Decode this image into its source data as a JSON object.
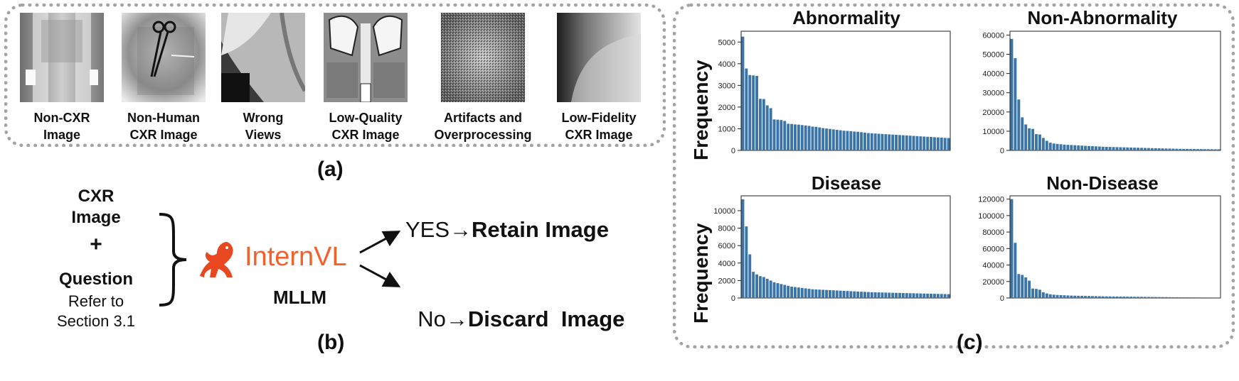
{
  "panel_a": {
    "label": "(a)",
    "items": [
      {
        "line1": "Non-CXR",
        "line2": "Image",
        "icon": "pelvis-xray-thumbnail"
      },
      {
        "line1": "Non-Human",
        "line2": "CXR Image",
        "icon": "forceps-xray-thumbnail"
      },
      {
        "line1": "Wrong",
        "line2": "Views",
        "icon": "lateral-view-thumbnail"
      },
      {
        "line1": "Low-Quality",
        "line2": "CXR Image",
        "icon": "low-quality-cxr-thumbnail"
      },
      {
        "line1": "Artifacts and",
        "line2": "Overprocessing",
        "icon": "noise-artifact-thumbnail"
      },
      {
        "line1": "Low-Fidelity",
        "line2": "CXR Image",
        "icon": "low-fidelity-cxr-thumbnail"
      }
    ]
  },
  "panel_b": {
    "label": "(b)",
    "input_line1": "CXR",
    "input_line2": "Image",
    "plus": "+",
    "question": "Question",
    "refer1": "Refer to",
    "refer2": "Section 3.1",
    "model_name": "InternVL",
    "model_sub": "MLLM",
    "yes_prefix": "YES",
    "yes_action": "Retain Image",
    "no_prefix": "No",
    "no_action": "Discard  Image",
    "colors": {
      "internvl": "#f0622d",
      "logo": "#e8471f"
    }
  },
  "panel_c": {
    "label": "(c)",
    "ylabel": "Frequency",
    "bar_color": "#3b75a7"
  },
  "chart_data": [
    {
      "type": "bar",
      "title": "Abnormality",
      "ylabel": "Frequency",
      "yticks": [
        0,
        1000,
        2000,
        3000,
        4000,
        5000
      ],
      "ylim": [
        0,
        5500
      ],
      "values": [
        5250,
        3780,
        3480,
        3460,
        3440,
        2380,
        2370,
        2080,
        1950,
        1430,
        1420,
        1400,
        1360,
        1230,
        1220,
        1200,
        1190,
        1170,
        1150,
        1130,
        1100,
        1090,
        1060,
        1030,
        1010,
        990,
        970,
        950,
        930,
        910,
        900,
        890,
        870,
        860,
        840,
        820,
        800,
        790,
        780,
        770,
        760,
        750,
        740,
        730,
        720,
        710,
        700,
        690,
        680,
        670,
        660,
        650,
        640,
        630,
        620,
        610,
        600,
        590,
        580,
        570
      ]
    },
    {
      "type": "bar",
      "title": "Non-Abnormality",
      "ylabel": "",
      "yticks": [
        0,
        10000,
        20000,
        30000,
        40000,
        50000,
        60000
      ],
      "ylim": [
        0,
        62000
      ],
      "values": [
        58000,
        48000,
        26500,
        17200,
        13500,
        11500,
        11200,
        8500,
        8300,
        6500,
        5000,
        4000,
        3600,
        3400,
        3200,
        3000,
        2900,
        2800,
        2700,
        2600,
        2500,
        2400,
        2300,
        2200,
        2100,
        2000,
        1900,
        1850,
        1800,
        1750,
        1700,
        1650,
        1600,
        1550,
        1500,
        1450,
        1400,
        1350,
        1300,
        1250,
        1200,
        1150,
        1100,
        1050,
        1000,
        950,
        900,
        850,
        800,
        780,
        760,
        740,
        720,
        700,
        680,
        660,
        640,
        620,
        600,
        580
      ]
    },
    {
      "type": "bar",
      "title": "Disease",
      "ylabel": "Frequency",
      "yticks": [
        0,
        2000,
        4000,
        6000,
        8000,
        10000
      ],
      "ylim": [
        0,
        11700
      ],
      "values": [
        11300,
        8200,
        5000,
        3000,
        2700,
        2500,
        2400,
        2200,
        2000,
        1800,
        1700,
        1600,
        1500,
        1400,
        1300,
        1250,
        1200,
        1150,
        1100,
        1050,
        1000,
        980,
        960,
        940,
        920,
        900,
        880,
        860,
        840,
        820,
        800,
        780,
        760,
        740,
        720,
        700,
        680,
        660,
        650,
        640,
        630,
        620,
        610,
        600,
        590,
        580,
        570,
        560,
        550,
        540,
        530,
        520,
        510,
        500,
        490,
        480,
        470,
        460,
        450,
        440
      ]
    },
    {
      "type": "bar",
      "title": "Non-Disease",
      "ylabel": "",
      "yticks": [
        0,
        20000,
        40000,
        60000,
        80000,
        100000,
        120000
      ],
      "ylim": [
        0,
        124000
      ],
      "values": [
        120000,
        67000,
        29000,
        28000,
        25000,
        21000,
        11500,
        11000,
        10000,
        7000,
        5500,
        4500,
        4000,
        3700,
        3500,
        3300,
        3100,
        2900,
        2800,
        2700,
        2600,
        2500,
        2400,
        2300,
        2200,
        2100,
        2000,
        1900,
        1850,
        1800,
        1750,
        1700,
        1650,
        1600,
        1550,
        1500,
        1450,
        1400,
        1350,
        1300,
        1250,
        1200,
        1150,
        1100,
        1050,
        1000,
        950,
        900,
        850,
        800,
        780,
        760,
        740,
        720,
        700,
        680,
        660,
        640,
        620,
        600
      ]
    }
  ]
}
